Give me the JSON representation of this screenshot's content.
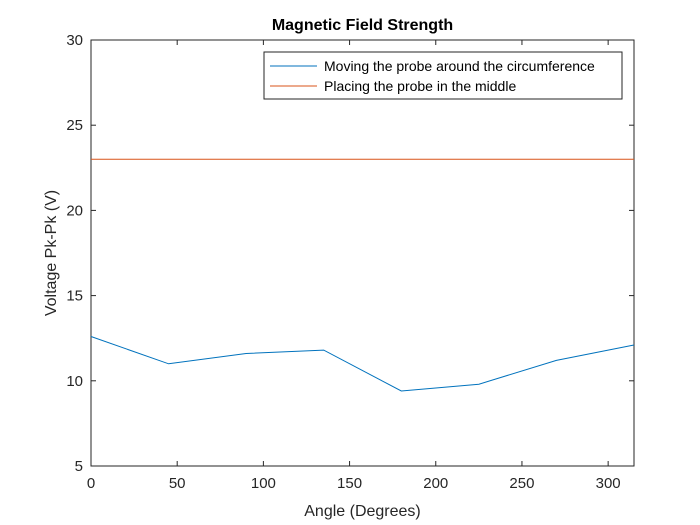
{
  "chart_data": {
    "type": "line",
    "title": "Magnetic Field Strength",
    "xlabel": "Angle (Degrees)",
    "ylabel": "Voltage Pk-Pk (V)",
    "xlim": [
      0,
      315
    ],
    "ylim": [
      5,
      30
    ],
    "xticks": [
      0,
      50,
      100,
      150,
      200,
      250,
      300
    ],
    "yticks": [
      5,
      10,
      15,
      20,
      25,
      30
    ],
    "grid": false,
    "legend_position": "top-right",
    "series": [
      {
        "name": "Moving the probe around the circumference",
        "color": "#0072bd",
        "x": [
          0,
          45,
          90,
          135,
          180,
          225,
          270,
          315
        ],
        "y": [
          12.6,
          11.0,
          11.6,
          11.8,
          9.4,
          9.8,
          11.2,
          12.1
        ]
      },
      {
        "name": "Placing the probe in the middle",
        "color": "#d95319",
        "x": [
          0,
          315
        ],
        "y": [
          23.0,
          23.0
        ]
      }
    ]
  }
}
